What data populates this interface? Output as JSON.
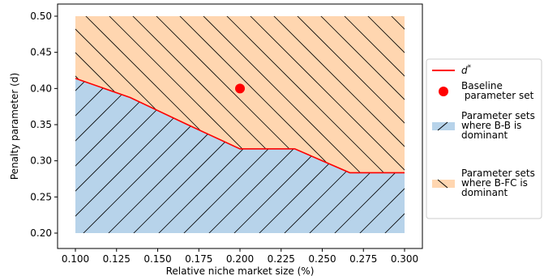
{
  "chart_data": {
    "type": "area",
    "xlabel": "Relative niche market size (%)",
    "ylabel": "Penalty parameter (d)",
    "xlim": [
      0.1,
      0.3
    ],
    "ylim": [
      0.2,
      0.5
    ],
    "xticks": [
      "0.100",
      "0.125",
      "0.150",
      "0.175",
      "0.200",
      "0.225",
      "0.250",
      "0.275",
      "0.300"
    ],
    "yticks": [
      "0.20",
      "0.25",
      "0.30",
      "0.35",
      "0.40",
      "0.45",
      "0.50"
    ],
    "grid": false,
    "legend_position": "right",
    "threshold_line": {
      "label": "d*",
      "color": "#ff0000",
      "x": [
        0.1,
        0.1333,
        0.1667,
        0.2,
        0.2333,
        0.2667,
        0.3
      ],
      "y": [
        0.414,
        0.3875,
        0.3515,
        0.3165,
        0.3165,
        0.2835,
        0.2835
      ]
    },
    "baseline_point": {
      "label": "Baseline\n parameter set",
      "color": "#ff0000",
      "x": 0.2,
      "y": 0.4
    },
    "regions": [
      {
        "label": "Parameter sets\nwhere B-B is\ndominant",
        "color": "#b7d3ea",
        "hatch": "/",
        "position": "below"
      },
      {
        "label": "Parameter sets\nwhere B-FC is\ndominant",
        "color": "#ffd6b0",
        "hatch": "\\",
        "position": "above"
      }
    ]
  }
}
